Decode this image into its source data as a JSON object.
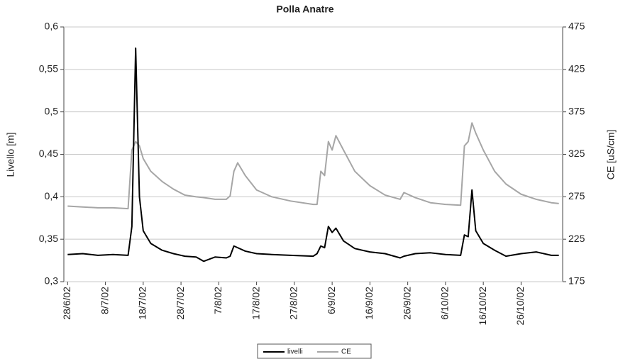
{
  "chart_data": {
    "type": "line",
    "title": "Polla Anatre",
    "y_label": "Livello [m]",
    "y2_label": "CE [uS/cm]",
    "x": [
      "2002-06-28",
      "2002-07-02",
      "2002-07-06",
      "2002-07-10",
      "2002-07-14",
      "2002-07-15",
      "2002-07-16",
      "2002-07-17",
      "2002-07-18",
      "2002-07-20",
      "2002-07-23",
      "2002-07-26",
      "2002-07-29",
      "2002-08-01",
      "2002-08-03",
      "2002-08-06",
      "2002-08-09",
      "2002-08-10",
      "2002-08-11",
      "2002-08-12",
      "2002-08-14",
      "2002-08-17",
      "2002-08-21",
      "2002-08-26",
      "2002-09-01",
      "2002-09-02",
      "2002-09-03",
      "2002-09-04",
      "2002-09-05",
      "2002-09-06",
      "2002-09-07",
      "2002-09-09",
      "2002-09-12",
      "2002-09-16",
      "2002-09-20",
      "2002-09-24",
      "2002-09-25",
      "2002-09-28",
      "2002-10-02",
      "2002-10-06",
      "2002-10-10",
      "2002-10-11",
      "2002-10-12",
      "2002-10-13",
      "2002-10-14",
      "2002-10-16",
      "2002-10-19",
      "2002-10-22",
      "2002-10-26",
      "2002-10-30",
      "2002-11-03",
      "2002-11-05"
    ],
    "series": [
      {
        "name": "livelli",
        "color": "#000000",
        "axis": "y",
        "values": [
          0.332,
          0.333,
          0.331,
          0.332,
          0.331,
          0.365,
          0.575,
          0.4,
          0.36,
          0.345,
          0.337,
          0.333,
          0.33,
          0.329,
          0.324,
          0.329,
          0.328,
          0.33,
          0.342,
          0.34,
          0.336,
          0.333,
          0.332,
          0.331,
          0.33,
          0.333,
          0.342,
          0.34,
          0.365,
          0.358,
          0.363,
          0.348,
          0.339,
          0.335,
          0.333,
          0.328,
          0.33,
          0.333,
          0.334,
          0.332,
          0.331,
          0.355,
          0.353,
          0.408,
          0.36,
          0.345,
          0.337,
          0.33,
          0.333,
          0.335,
          0.331,
          0.331
        ]
      },
      {
        "name": "CE",
        "color": "#a6a6a6",
        "axis": "y2",
        "values": [
          264,
          263,
          262,
          262,
          261,
          330,
          340,
          335,
          320,
          305,
          293,
          284,
          277,
          275,
          274,
          272,
          272,
          276,
          305,
          315,
          300,
          283,
          275,
          270,
          266,
          266,
          305,
          300,
          340,
          330,
          347,
          330,
          305,
          288,
          277,
          272,
          280,
          274,
          268,
          266,
          265,
          335,
          340,
          362,
          350,
          330,
          305,
          290,
          278,
          272,
          268,
          267
        ]
      }
    ],
    "xlim": [
      "2002-06-27",
      "2002-11-06"
    ],
    "xticks": [
      {
        "value": "2002-06-28",
        "label": "28/6/02"
      },
      {
        "value": "2002-07-08",
        "label": "8/7/02"
      },
      {
        "value": "2002-07-18",
        "label": "18/7/02"
      },
      {
        "value": "2002-07-28",
        "label": "28/7/02"
      },
      {
        "value": "2002-08-07",
        "label": "7/8/02"
      },
      {
        "value": "2002-08-17",
        "label": "17/8/02"
      },
      {
        "value": "2002-08-27",
        "label": "27/8/02"
      },
      {
        "value": "2002-09-06",
        "label": "6/9/02"
      },
      {
        "value": "2002-09-16",
        "label": "16/9/02"
      },
      {
        "value": "2002-09-26",
        "label": "26/9/02"
      },
      {
        "value": "2002-10-06",
        "label": "6/10/02"
      },
      {
        "value": "2002-10-16",
        "label": "16/10/02"
      },
      {
        "value": "2002-10-26",
        "label": "26/10/02"
      }
    ],
    "ylim": [
      0.3,
      0.6
    ],
    "yticks": [
      {
        "value": 0.3,
        "label": "0,3"
      },
      {
        "value": 0.35,
        "label": "0,35"
      },
      {
        "value": 0.4,
        "label": "0,4"
      },
      {
        "value": 0.45,
        "label": "0,45"
      },
      {
        "value": 0.5,
        "label": "0,5"
      },
      {
        "value": 0.55,
        "label": "0,55"
      },
      {
        "value": 0.6,
        "label": "0,6"
      }
    ],
    "y2lim": [
      175,
      475
    ],
    "y2ticks": [
      175,
      225,
      275,
      325,
      375,
      425,
      475
    ],
    "grid": true,
    "legend": "bottom"
  }
}
